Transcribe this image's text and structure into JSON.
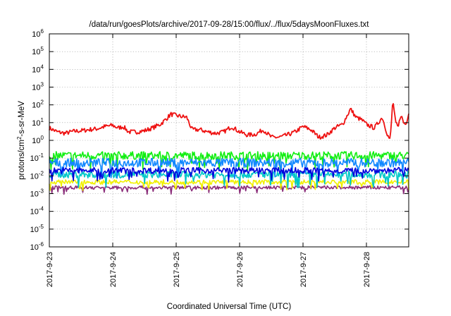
{
  "chart_data": {
    "type": "line",
    "title": "/data/run/goesPlots/archive/2017-09-28/15:00/flux/../flux/5daysMoonFluxes.txt",
    "xlabel": "Coordinated Universal Time (UTC)",
    "ylabel_parts": [
      "protons/cm",
      "2",
      "-s-sr-MeV"
    ],
    "y_scale": "log",
    "ylim": [
      1e-06,
      1000000.0
    ],
    "y_ticks": [
      {
        "exp": "-6",
        "value": 1e-06
      },
      {
        "exp": "-5",
        "value": 1e-05
      },
      {
        "exp": "-4",
        "value": 0.0001
      },
      {
        "exp": "-3",
        "value": 0.001
      },
      {
        "exp": "-2",
        "value": 0.01
      },
      {
        "exp": "-1",
        "value": 0.1
      },
      {
        "exp": "0",
        "value": 1
      },
      {
        "exp": "1",
        "value": 10
      },
      {
        "exp": "2",
        "value": 100
      },
      {
        "exp": "3",
        "value": 1000
      },
      {
        "exp": "4",
        "value": 10000
      },
      {
        "exp": "5",
        "value": 100000
      },
      {
        "exp": "6",
        "value": 1000000
      }
    ],
    "y_tick_base": "10",
    "xlim": [
      "2017-09-23 00:00",
      "2017-09-28 16:00"
    ],
    "x_ticks": [
      "2017-9-23",
      "2017-9-24",
      "2017-9-25",
      "2017-9-26",
      "2017-9-27",
      "2017-9-28"
    ],
    "grid": true,
    "series": [
      {
        "color": "#ee1111",
        "points": [
          [
            "2017-09-23 00:00",
            5
          ],
          [
            "2017-09-23 03:00",
            3
          ],
          [
            "2017-09-23 06:00",
            2.5
          ],
          [
            "2017-09-23 09:00",
            3.2
          ],
          [
            "2017-09-23 12:00",
            3.5
          ],
          [
            "2017-09-23 15:00",
            4
          ],
          [
            "2017-09-23 18:00",
            4.5
          ],
          [
            "2017-09-23 21:00",
            6
          ],
          [
            "2017-09-24 00:00",
            7
          ],
          [
            "2017-09-24 02:00",
            5
          ],
          [
            "2017-09-24 04:00",
            6
          ],
          [
            "2017-09-24 06:00",
            3
          ],
          [
            "2017-09-24 09:00",
            3
          ],
          [
            "2017-09-24 12:00",
            3.5
          ],
          [
            "2017-09-24 15:00",
            5
          ],
          [
            "2017-09-24 18:00",
            8
          ],
          [
            "2017-09-24 20:00",
            15
          ],
          [
            "2017-09-24 22:00",
            30
          ],
          [
            "2017-09-25 00:00",
            25
          ],
          [
            "2017-09-25 02:00",
            22
          ],
          [
            "2017-09-25 04:00",
            20
          ],
          [
            "2017-09-25 06:00",
            4
          ],
          [
            "2017-09-25 09:00",
            4
          ],
          [
            "2017-09-25 12:00",
            3
          ],
          [
            "2017-09-25 15:00",
            2.5
          ],
          [
            "2017-09-25 18:00",
            3
          ],
          [
            "2017-09-25 21:00",
            6
          ],
          [
            "2017-09-26 00:00",
            3
          ],
          [
            "2017-09-26 03:00",
            2
          ],
          [
            "2017-09-26 06:00",
            2.2
          ],
          [
            "2017-09-26 09:00",
            4
          ],
          [
            "2017-09-26 12:00",
            1.5
          ],
          [
            "2017-09-26 15:00",
            1.5
          ],
          [
            "2017-09-26 18:00",
            2
          ],
          [
            "2017-09-26 21:00",
            3
          ],
          [
            "2017-09-27 00:00",
            6
          ],
          [
            "2017-09-27 03:00",
            4
          ],
          [
            "2017-09-27 06:00",
            1.5
          ],
          [
            "2017-09-27 09:00",
            2
          ],
          [
            "2017-09-27 12:00",
            5
          ],
          [
            "2017-09-27 15:00",
            8
          ],
          [
            "2017-09-27 18:00",
            60
          ],
          [
            "2017-09-27 20:00",
            20
          ],
          [
            "2017-09-27 22:00",
            15
          ],
          [
            "2017-09-28 00:00",
            8
          ],
          [
            "2017-09-28 03:00",
            5
          ],
          [
            "2017-09-28 06:00",
            20
          ],
          [
            "2017-09-28 08:00",
            2
          ],
          [
            "2017-09-28 09:00",
            1
          ],
          [
            "2017-09-28 10:00",
            200
          ],
          [
            "2017-09-28 11:00",
            10
          ],
          [
            "2017-09-28 12:00",
            5
          ],
          [
            "2017-09-28 13:00",
            30
          ],
          [
            "2017-09-28 14:00",
            10
          ],
          [
            "2017-09-28 15:00",
            8
          ],
          [
            "2017-09-28 16:00",
            40
          ]
        ]
      },
      {
        "color": "#11ee11",
        "level": 0.14,
        "noise": 0.45
      },
      {
        "color": "#1188ff",
        "level": 0.055,
        "noise": 0.5
      },
      {
        "color": "#00c8c8",
        "level": 0.012,
        "noise": 0.4
      },
      {
        "color": "#0000dd",
        "level": 0.02,
        "noise": 0.35
      },
      {
        "color": "#f0f000",
        "level": 0.0045,
        "noise": 0.25
      },
      {
        "color": "#8b2d7a",
        "level": 0.0022,
        "noise": 0.2
      }
    ]
  }
}
